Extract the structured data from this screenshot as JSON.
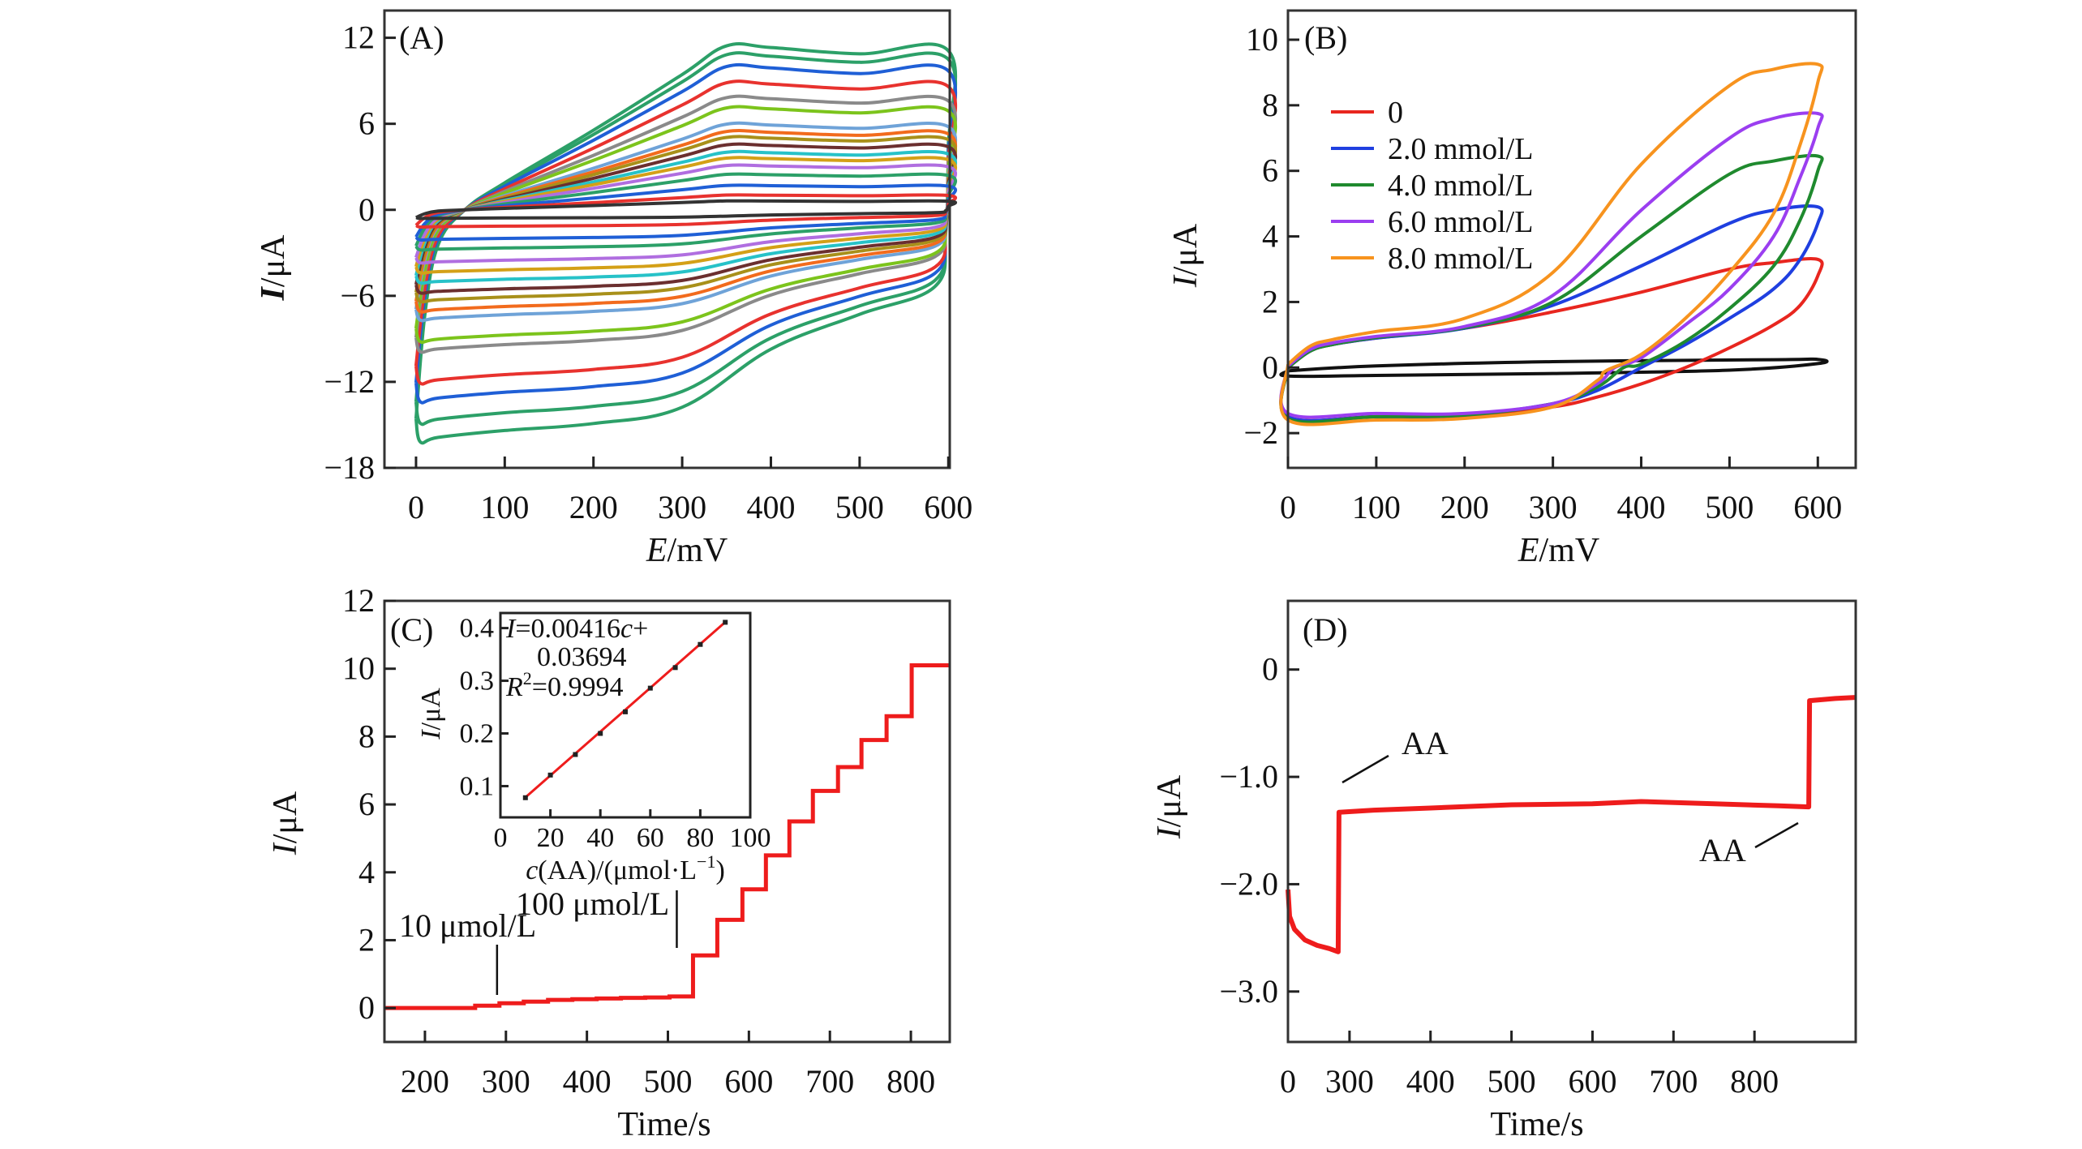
{
  "chart_data": [
    {
      "panel": "A",
      "type": "line",
      "panel_label": "(A)",
      "xlabel_italic": "E",
      "xlabel_rest": "/mV",
      "ylabel_italic": "I",
      "ylabel_rest": "/μA",
      "xlim": [
        -35.6,
        601.6
      ],
      "ylim": [
        -18,
        13.9
      ],
      "x_ticks": [
        0,
        100,
        200,
        300,
        400,
        500,
        600
      ],
      "y_ticks": [
        12,
        6,
        0,
        -6,
        -12,
        -18
      ],
      "y_tick_labels": [
        "12",
        "6",
        "0",
        "−6",
        "−12",
        "−18"
      ],
      "series": [
        {
          "color": "#2ca068",
          "anodic_I_at_600mV": 11.1,
          "cathodic_I_at_0mV": -16.2
        },
        {
          "color": "#2ca068",
          "anodic_I_at_600mV": 10.5,
          "cathodic_I_at_0mV": -14.9
        },
        {
          "color": "#1f5fd6",
          "anodic_I_at_600mV": 9.7,
          "cathodic_I_at_0mV": -13.4
        },
        {
          "color": "#e8322e",
          "anodic_I_at_600mV": 8.6,
          "cathodic_I_at_0mV": -12.1
        },
        {
          "color": "#8a8a8a",
          "anodic_I_at_600mV": 7.6,
          "cathodic_I_at_0mV": -9.9
        },
        {
          "color": "#7cc41c",
          "anodic_I_at_600mV": 6.9,
          "cathodic_I_at_0mV": -9.2
        },
        {
          "color": "#6fa3d8",
          "anodic_I_at_600mV": 5.8,
          "cathodic_I_at_0mV": -7.7
        },
        {
          "color": "#f26b1d",
          "anodic_I_at_600mV": 5.3,
          "cathodic_I_at_0mV": -7.1
        },
        {
          "color": "#a8901a",
          "anodic_I_at_600mV": 4.9,
          "cathodic_I_at_0mV": -6.4
        },
        {
          "color": "#6b2f2f",
          "anodic_I_at_600mV": 4.4,
          "cathodic_I_at_0mV": -5.8
        },
        {
          "color": "#27c2c8",
          "anodic_I_at_600mV": 3.9,
          "cathodic_I_at_0mV": -5.1
        },
        {
          "color": "#d4a017",
          "anodic_I_at_600mV": 3.5,
          "cathodic_I_at_0mV": -4.4
        },
        {
          "color": "#b06ee0",
          "anodic_I_at_600mV": 3.0,
          "cathodic_I_at_0mV": -3.7
        },
        {
          "color": "#2ca068",
          "anodic_I_at_600mV": 2.4,
          "cathodic_I_at_0mV": -2.8
        },
        {
          "color": "#1f5fd6",
          "anodic_I_at_600mV": 1.65,
          "cathodic_I_at_0mV": -2.1
        },
        {
          "color": "#e8322e",
          "anodic_I_at_600mV": 1.0,
          "cathodic_I_at_0mV": -1.2
        },
        {
          "color": "#333333",
          "anodic_I_at_600mV": 0.6,
          "cathodic_I_at_0mV": -0.6
        }
      ]
    },
    {
      "panel": "B",
      "type": "line",
      "panel_label": "(B)",
      "xlabel_italic": "E",
      "xlabel_rest": "/mV",
      "ylabel_italic": "I",
      "ylabel_rest": "/μA",
      "xlim": [
        0,
        642.9
      ],
      "ylim": [
        -3.06,
        10.89
      ],
      "x_ticks": [
        0,
        100,
        200,
        300,
        400,
        500,
        600
      ],
      "y_ticks": [
        10,
        8,
        6,
        4,
        2,
        0,
        -2
      ],
      "y_tick_labels": [
        "10",
        "8",
        "6",
        "4",
        "2",
        "0",
        "−2"
      ],
      "legend_position": "upper-left",
      "series": [
        {
          "name": "",
          "color": "#111111",
          "points": [
            [
              0,
              -0.1
            ],
            [
              100,
              0.05
            ],
            [
              300,
              0.18
            ],
            [
              550,
              0.24
            ],
            [
              600,
              0.25
            ],
            [
              600,
              0.12
            ],
            [
              500,
              -0.08
            ],
            [
              300,
              -0.18
            ],
            [
              100,
              -0.24
            ],
            [
              0,
              -0.26
            ],
            [
              0,
              -0.1
            ]
          ]
        },
        {
          "name": "0",
          "color": "#e8261f",
          "points": [
            [
              0,
              0
            ],
            [
              25,
              0.5
            ],
            [
              50,
              0.7
            ],
            [
              100,
              0.9
            ],
            [
              200,
              1.2
            ],
            [
              300,
              1.7
            ],
            [
              400,
              2.3
            ],
            [
              500,
              3.0
            ],
            [
              550,
              3.2
            ],
            [
              600,
              3.3
            ],
            [
              600,
              2.8
            ],
            [
              580,
              1.9
            ],
            [
              550,
              1.3
            ],
            [
              500,
              0.6
            ],
            [
              450,
              0
            ],
            [
              400,
              -0.5
            ],
            [
              350,
              -0.9
            ],
            [
              300,
              -1.2
            ],
            [
              200,
              -1.5
            ],
            [
              100,
              -1.5
            ],
            [
              0,
              -1.5
            ],
            [
              0,
              0
            ]
          ]
        },
        {
          "name": "2.0 mmol/L",
          "color": "#1f3fe0",
          "points": [
            [
              0,
              0
            ],
            [
              25,
              0.5
            ],
            [
              50,
              0.7
            ],
            [
              100,
              0.9
            ],
            [
              200,
              1.2
            ],
            [
              300,
              1.9
            ],
            [
              400,
              3.1
            ],
            [
              500,
              4.4
            ],
            [
              550,
              4.8
            ],
            [
              600,
              4.9
            ],
            [
              600,
              4.4
            ],
            [
              580,
              3.3
            ],
            [
              550,
              2.4
            ],
            [
              500,
              1.5
            ],
            [
              450,
              0.7
            ],
            [
              400,
              0
            ],
            [
              350,
              -0.7
            ],
            [
              300,
              -1.1
            ],
            [
              200,
              -1.45
            ],
            [
              100,
              -1.5
            ],
            [
              0,
              -1.5
            ],
            [
              0,
              0
            ]
          ]
        },
        {
          "name": "4.0 mmol/L",
          "color": "#1f8a2e",
          "points": [
            [
              0,
              0
            ],
            [
              25,
              0.5
            ],
            [
              50,
              0.7
            ],
            [
              100,
              0.92
            ],
            [
              200,
              1.22
            ],
            [
              300,
              2.0
            ],
            [
              400,
              4.0
            ],
            [
              500,
              5.9
            ],
            [
              550,
              6.3
            ],
            [
              600,
              6.45
            ],
            [
              600,
              6.0
            ],
            [
              580,
              4.5
            ],
            [
              550,
              3.1
            ],
            [
              500,
              1.8
            ],
            [
              450,
              0.8
            ],
            [
              400,
              0.1
            ],
            [
              380,
              0
            ],
            [
              350,
              -0.6
            ],
            [
              300,
              -1.1
            ],
            [
              200,
              -1.45
            ],
            [
              100,
              -1.5
            ],
            [
              0,
              -1.55
            ],
            [
              0,
              0
            ]
          ]
        },
        {
          "name": "6.0 mmol/L",
          "color": "#9b3ef0",
          "points": [
            [
              0,
              0.05
            ],
            [
              25,
              0.55
            ],
            [
              50,
              0.75
            ],
            [
              100,
              0.95
            ],
            [
              200,
              1.25
            ],
            [
              300,
              2.2
            ],
            [
              400,
              4.8
            ],
            [
              500,
              7.0
            ],
            [
              550,
              7.6
            ],
            [
              600,
              7.75
            ],
            [
              600,
              7.3
            ],
            [
              580,
              5.8
            ],
            [
              550,
              4.0
            ],
            [
              500,
              2.4
            ],
            [
              450,
              1.3
            ],
            [
              400,
              0.3
            ],
            [
              370,
              0
            ],
            [
              350,
              -0.5
            ],
            [
              300,
              -1.1
            ],
            [
              200,
              -1.4
            ],
            [
              100,
              -1.4
            ],
            [
              0,
              -1.4
            ],
            [
              0,
              0.05
            ]
          ]
        },
        {
          "name": "8.0 mmol/L",
          "color": "#f7931e",
          "points": [
            [
              0,
              0.1
            ],
            [
              25,
              0.65
            ],
            [
              50,
              0.85
            ],
            [
              100,
              1.1
            ],
            [
              200,
              1.5
            ],
            [
              300,
              2.9
            ],
            [
              400,
              6.2
            ],
            [
              500,
              8.6
            ],
            [
              550,
              9.1
            ],
            [
              600,
              9.25
            ],
            [
              600,
              8.7
            ],
            [
              580,
              6.8
            ],
            [
              550,
              4.7
            ],
            [
              500,
              2.9
            ],
            [
              450,
              1.5
            ],
            [
              400,
              0.4
            ],
            [
              360,
              -0.1
            ],
            [
              350,
              -0.4
            ],
            [
              300,
              -1.2
            ],
            [
              200,
              -1.55
            ],
            [
              100,
              -1.6
            ],
            [
              0,
              -1.6
            ],
            [
              0,
              0.1
            ]
          ]
        }
      ]
    },
    {
      "panel": "C",
      "type": "line",
      "panel_label": "(C)",
      "xlabel": "Time/s",
      "ylabel_italic": "I",
      "ylabel_rest": "/μA",
      "xlim": [
        150,
        848
      ],
      "ylim": [
        -1.0,
        12
      ],
      "x_ticks": [
        200,
        300,
        400,
        500,
        600,
        700,
        800
      ],
      "y_ticks": [
        12,
        10,
        8,
        6,
        4,
        2,
        0
      ],
      "color": "#ee1c1c",
      "steps": [
        [
          150,
          0
        ],
        [
          262,
          0.07
        ],
        [
          292,
          0.14
        ],
        [
          322,
          0.19
        ],
        [
          352,
          0.24
        ],
        [
          382,
          0.26
        ],
        [
          412,
          0.28
        ],
        [
          442,
          0.3
        ],
        [
          472,
          0.31
        ],
        [
          502,
          0.34
        ],
        [
          531,
          1.55
        ],
        [
          561,
          2.6
        ],
        [
          592,
          3.5
        ],
        [
          621,
          4.5
        ],
        [
          650,
          5.5
        ],
        [
          679,
          6.4
        ],
        [
          710,
          7.1
        ],
        [
          739,
          7.9
        ],
        [
          770,
          8.6
        ],
        [
          801,
          10.1
        ],
        [
          848,
          10.1
        ]
      ],
      "annotations": [
        {
          "text": "10 μmol/L",
          "at_time": 265
        },
        {
          "text": "100 μmol/L",
          "at_time": 531
        }
      ],
      "inset": {
        "type": "scatter",
        "xlabel_italic": "c",
        "xlabel_rest": "(AA)/(μmol·L",
        "xlabel_sup": "−1",
        "xlabel_close": ")",
        "ylabel_italic": "I",
        "ylabel_rest": "/μA",
        "xlim": [
          0,
          100
        ],
        "ylim": [
          0.0407,
          0.4286
        ],
        "x_ticks": [
          0,
          20,
          40,
          60,
          80,
          100
        ],
        "y_ticks": [
          0.4,
          0.3,
          0.2,
          0.1
        ],
        "x": [
          10,
          20,
          30,
          40,
          50,
          60,
          70,
          80,
          90
        ],
        "y": [
          0.078,
          0.121,
          0.16,
          0.2,
          0.241,
          0.286,
          0.325,
          0.369,
          0.411
        ],
        "fit": {
          "slope": 0.00416,
          "intercept": 0.03694
        },
        "eq_line1_italic": "I",
        "eq_line1_rest": "=0.00416",
        "eq_line1_var": "c",
        "eq_line1_end": "+",
        "eq_line2": "0.03694",
        "eq_r_italic": "R",
        "eq_r_sup": "2",
        "eq_r_rest": "=0.9994",
        "color": "#ee1c1c"
      }
    },
    {
      "panel": "D",
      "type": "line",
      "panel_label": "(D)",
      "xlabel": "Time/s",
      "ylabel_italic": "I",
      "ylabel_rest": "/μA",
      "xlim": [
        224,
        925
      ],
      "ylim": [
        -3.47,
        0.64
      ],
      "x_origin_label": "0",
      "x_ticks": [
        300,
        400,
        500,
        600,
        700,
        800
      ],
      "y_ticks": [
        0,
        -1.0,
        -2.0,
        -3.0
      ],
      "y_tick_labels": [
        "0",
        "−1.0",
        "−2.0",
        "−3.0"
      ],
      "color": "#ee1c1c",
      "points": [
        [
          224,
          -2.05
        ],
        [
          226,
          -2.3
        ],
        [
          232,
          -2.42
        ],
        [
          245,
          -2.52
        ],
        [
          260,
          -2.57
        ],
        [
          275,
          -2.6
        ],
        [
          286,
          -2.63
        ],
        [
          287,
          -1.33
        ],
        [
          330,
          -1.31
        ],
        [
          400,
          -1.29
        ],
        [
          500,
          -1.26
        ],
        [
          600,
          -1.25
        ],
        [
          660,
          -1.23
        ],
        [
          750,
          -1.25
        ],
        [
          830,
          -1.27
        ],
        [
          867,
          -1.28
        ],
        [
          868,
          -0.29
        ],
        [
          900,
          -0.27
        ],
        [
          925,
          -0.26
        ]
      ],
      "annotations": [
        {
          "text": "AA",
          "at_time": 287
        },
        {
          "text": "AA",
          "at_time": 867
        }
      ]
    }
  ]
}
